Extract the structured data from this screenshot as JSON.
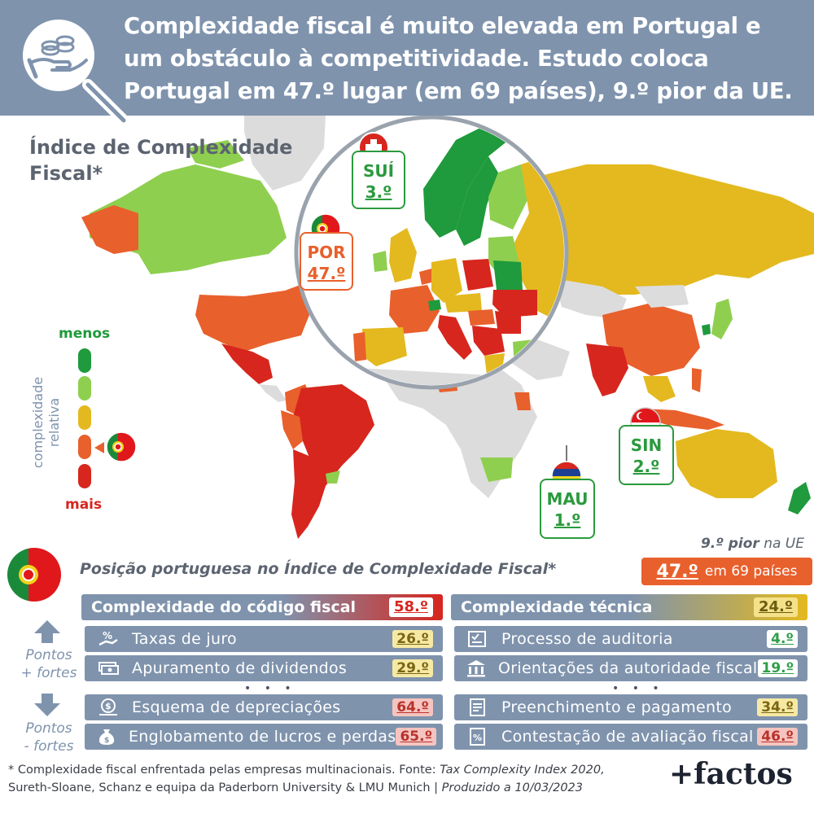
{
  "header": {
    "title_lines": [
      "Complexidade fiscal é muito elevada em Portugal e",
      "um obstáculo à competitividade. Estudo coloca",
      "Portugal em 47.º lugar (em 69 países), 9.º pior da UE."
    ],
    "icon": "magnifier-coins-hand-icon"
  },
  "map": {
    "title_lines": [
      "Índice de Complexidade",
      "Fiscal*"
    ],
    "legend": {
      "top": "menos",
      "bottom": "mais",
      "side_lines": [
        "complexidade",
        "relativa"
      ],
      "colors": [
        "#1f9a3c",
        "#8fcf4f",
        "#e3b91f",
        "#e8602c",
        "#d7261e"
      ]
    },
    "labels": {
      "sui": {
        "code": "SUÍ",
        "rank": "3.º",
        "flag": "switzerland-flag-icon"
      },
      "por": {
        "code": "POR",
        "rank": "47.º",
        "flag": "portugal-flag-icon"
      },
      "mau": {
        "code": "MAU",
        "rank": "1.º",
        "flag": "mauritius-flag-icon"
      },
      "sin": {
        "code": "SIN",
        "rank": "2.º",
        "flag": "singapore-flag-icon"
      }
    }
  },
  "position": {
    "title": "Posição portuguesa no Índice de Complexidade Fiscal*",
    "eu_rank_bold": "9.º pior",
    "eu_rank_rest": " na UE",
    "overall_rank": "47.º",
    "overall_suffix": "em 69 países"
  },
  "side_labels": {
    "strong": [
      "Pontos",
      "+ fortes"
    ],
    "weak": [
      "Pontos",
      "- fortes"
    ]
  },
  "code": {
    "header": "Complexidade do código fiscal",
    "rank": "58.º",
    "rows": [
      {
        "label": "Taxas de juro",
        "rank": "26.º",
        "icon": "percent-hand-icon"
      },
      {
        "label": "Apuramento de dividendos",
        "rank": "29.º",
        "icon": "money-stack-icon"
      },
      {
        "label": "Esquema de depreciações",
        "rank": "64.º",
        "icon": "depreciation-coin-icon"
      },
      {
        "label": "Englobamento de lucros e perdas",
        "rank": "65.º",
        "icon": "money-bag-icon"
      }
    ]
  },
  "technical": {
    "header": "Complexidade técnica",
    "rank": "24.º",
    "rows": [
      {
        "label": "Processo de auditoria",
        "rank": "4.º",
        "icon": "checklist-icon"
      },
      {
        "label": "Orientações da autoridade fiscal",
        "rank": "19.º",
        "icon": "institution-icon"
      },
      {
        "label": "Preenchimento e pagamento",
        "rank": "34.º",
        "icon": "form-icon"
      },
      {
        "label": "Contestação de avaliação fiscal",
        "rank": "46.º",
        "icon": "tax-document-icon"
      }
    ]
  },
  "dots": "• • •",
  "footnote": {
    "line1_a": "* Complexidade fiscal enfrentada pelas empresas multinacionais. Fonte: ",
    "line1_b": "Tax Complexity Index 2020,",
    "line2_a": "Sureth-Sloane, Schanz e equipa da Paderborn University & LMU Munich | ",
    "line2_b": "Produzido a 10/03/2023"
  },
  "brand": "+factos"
}
